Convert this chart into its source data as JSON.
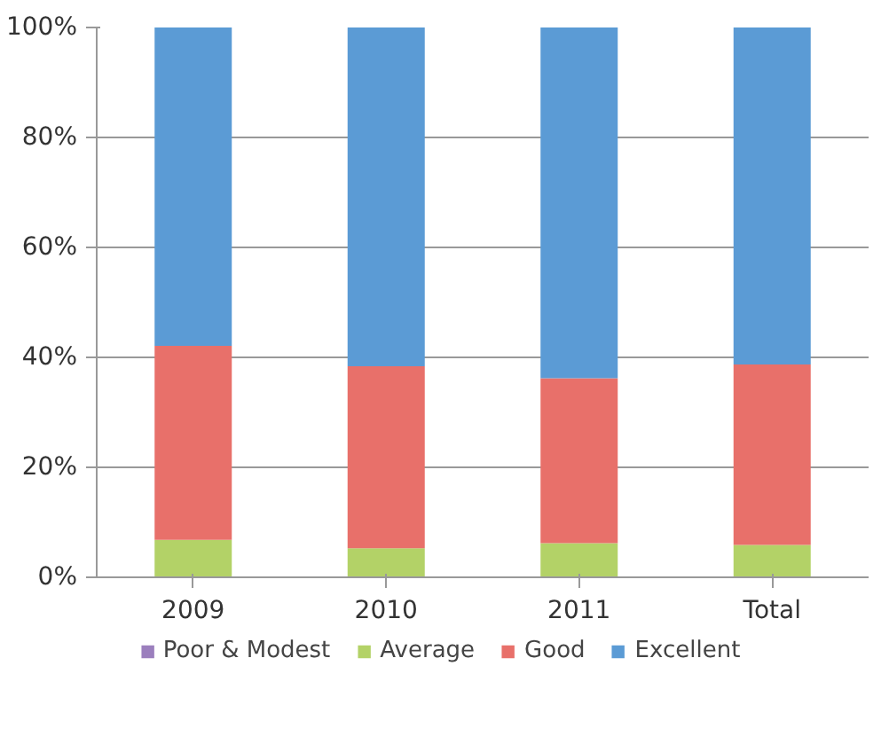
{
  "chart_data": {
    "type": "bar",
    "stacked": true,
    "categories": [
      "2009",
      "2010",
      "2011",
      "Total"
    ],
    "series": [
      {
        "name": "Poor & Modest",
        "color": "#9b7fbd",
        "values": [
          0,
          0,
          0,
          0
        ]
      },
      {
        "name": "Average",
        "color": "#b3d267",
        "values": [
          6.8,
          5.3,
          6.2,
          5.9
        ]
      },
      {
        "name": "Good",
        "color": "#e8706a",
        "values": [
          35.3,
          33.1,
          30.0,
          32.8
        ]
      },
      {
        "name": "Excellent",
        "color": "#5b9bd5",
        "values": [
          57.9,
          61.6,
          63.8,
          61.3
        ]
      }
    ],
    "ylim": [
      0,
      100
    ],
    "yticks": [
      {
        "value": 0,
        "label": "0%"
      },
      {
        "value": 20,
        "label": "20%"
      },
      {
        "value": 40,
        "label": "40%"
      },
      {
        "value": 60,
        "label": "60%"
      },
      {
        "value": 80,
        "label": "80%"
      },
      {
        "value": 100,
        "label": "100%"
      }
    ],
    "grid": "y",
    "legend": "bottom"
  }
}
